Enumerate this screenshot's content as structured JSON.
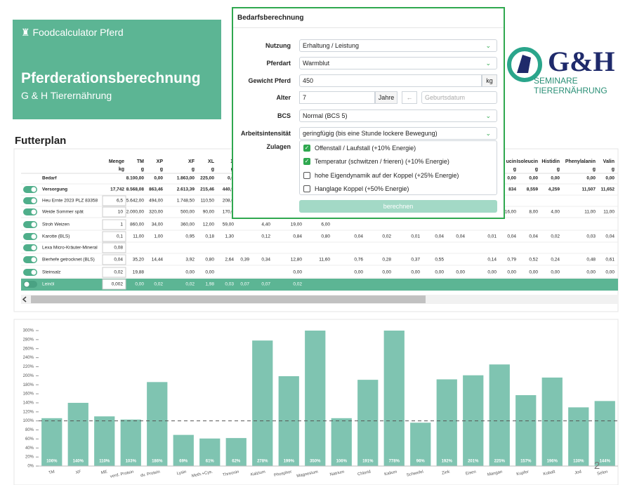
{
  "header": {
    "app": "Foodcalculator Pferd",
    "title": "Pferderationsberechnung",
    "subtitle": "G & H Tierernährung"
  },
  "logo": {
    "mark": "G&H",
    "tagline": "SEMINARE TIERERNÄHRUNG"
  },
  "page_number": "2",
  "form": {
    "title": "Bedarfsberechnung",
    "fields": [
      {
        "label": "Nutzung",
        "value": "Erhaltung / Leistung",
        "kind": "select"
      },
      {
        "label": "Pferdart",
        "value": "Warmblut",
        "kind": "select"
      },
      {
        "label": "Gewicht Pferd",
        "value": "450",
        "unit": "kg",
        "kind": "input"
      },
      {
        "label": "Alter",
        "value": "7",
        "unit": "Jahre",
        "placeholder": "Geburtsdatum",
        "kind": "age"
      },
      {
        "label": "BCS",
        "value": "Normal (BCS 5)",
        "kind": "select"
      },
      {
        "label": "Arbeitsintensität",
        "value": "geringfügig (bis eine Stunde lockere Bewegung)",
        "kind": "select"
      }
    ],
    "extras_label": "Zulagen",
    "extras": [
      {
        "label": "Offenstall / Laufstall (+10% Energie)",
        "checked": true
      },
      {
        "label": "Temperatur (schwitzen / frieren) (+10% Energie)",
        "checked": true
      },
      {
        "label": "hohe Eigendynamik auf der Koppel (+25% Energie)",
        "checked": false
      },
      {
        "label": "Hanglage Koppel (+50% Energie)",
        "checked": false
      }
    ],
    "button": "berechnen"
  },
  "table": {
    "title": "Futterplan",
    "columns": [
      {
        "name": "Menge",
        "unit": "kg"
      },
      {
        "name": "TM",
        "unit": "g"
      },
      {
        "name": "XP",
        "unit": "g"
      },
      {
        "name": "XF",
        "unit": "g"
      },
      {
        "name": "XL",
        "unit": "g"
      },
      {
        "name": "X",
        "unit": "g"
      },
      null,
      null,
      null,
      null,
      null,
      null,
      null,
      null,
      null,
      null,
      {
        "name": "ucin",
        "unit": "g"
      },
      {
        "name": "Isoleucin",
        "unit": "g"
      },
      {
        "name": "Histidin",
        "unit": "g"
      },
      {
        "name": "Phenylalanin",
        "unit": "g"
      },
      {
        "name": "Valin",
        "unit": "g"
      }
    ],
    "rows": [
      {
        "name": "Bedarf",
        "cells": [
          null,
          "8.100,00",
          "0,00",
          "1.863,00",
          "225,00",
          "0,0",
          null,
          null,
          null,
          null,
          null,
          null,
          null,
          null,
          null,
          null,
          "0,00",
          "0,00",
          "0,00",
          "0,00",
          "0,00"
        ]
      },
      {
        "name": "Versorgung",
        "cells": [
          "17,742",
          "8.568,08",
          "863,46",
          "2.613,39",
          "215,46",
          "440,9",
          null,
          null,
          null,
          null,
          null,
          null,
          null,
          null,
          null,
          null,
          "834",
          "8,559",
          "4,259",
          "11,507",
          "11,652"
        ]
      },
      {
        "name": "Heu Ernte 2023 PLZ 83358",
        "cells": [
          "6,5",
          "5.642,00",
          "494,00",
          "1.748,50",
          "110,50",
          "208,0",
          null,
          null,
          null,
          null,
          null,
          null,
          null,
          null,
          null,
          null,
          null,
          null,
          null,
          null,
          null
        ]
      },
      {
        "name": "Weide Sommer spät",
        "cells": [
          "10",
          "2.000,00",
          "320,00",
          "500,00",
          "90,00",
          "170,0",
          null,
          null,
          null,
          null,
          null,
          null,
          null,
          null,
          null,
          null,
          "16,00",
          "8,00",
          "4,00",
          "11,00",
          "11,00"
        ]
      },
      {
        "name": "Stroh Weizen",
        "cells": [
          "1",
          "860,00",
          "34,00",
          "360,00",
          "12,00",
          "59,00",
          null,
          "4,40",
          "19,00",
          "6,00",
          null,
          null,
          null,
          null,
          null,
          null,
          null,
          null,
          null,
          null,
          null
        ]
      },
      {
        "name": "Karotte (BLS)",
        "cells": [
          "0,1",
          "11,00",
          "1,00",
          "0,95",
          "0,18",
          "1,30",
          null,
          "0,12",
          "0,84",
          "0,80",
          "0,04",
          "0,02",
          "0,01",
          "0,04",
          "0,04",
          "0,01",
          "0,04",
          "0,04",
          "0,02",
          "0,03",
          "0,04"
        ]
      },
      {
        "name": "Lexa Micro-Kräuter-Mineral",
        "cells": [
          "0,08",
          null,
          null,
          null,
          null,
          null,
          null,
          null,
          null,
          null,
          null,
          null,
          null,
          null,
          null,
          null,
          null,
          null,
          null,
          null,
          null
        ]
      },
      {
        "name": "Bierhefe getrocknet (BLS)",
        "cells": [
          "0,04",
          "35,20",
          "14,44",
          "3,92",
          "0,80",
          "2,64",
          "0,39",
          "0,34",
          "12,80",
          "11,60",
          "0,76",
          "0,28",
          "0,37",
          "0,55",
          null,
          "0,14",
          "0,79",
          "0,52",
          "0,24",
          "0,48",
          "0,61"
        ]
      },
      {
        "name": "Steinsalz",
        "cells": [
          "0,02",
          "19,88",
          null,
          "0,00",
          "0,00",
          null,
          null,
          null,
          "0,00",
          null,
          "0,00",
          "0,00",
          "0,00",
          "0,00",
          "0,00",
          "0,00",
          "0,00",
          "0,00",
          "0,00",
          "0,00",
          "0,00"
        ]
      },
      {
        "name": "Leinöl",
        "cells": [
          "0,002",
          "0,00",
          "0,02",
          "0,02",
          "1,98",
          "0,03",
          "0,07",
          "0,07",
          "0,02",
          null,
          null,
          null,
          null,
          null,
          null,
          null,
          null,
          null,
          null,
          null,
          null
        ]
      }
    ]
  },
  "chart_data": {
    "type": "bar",
    "color": "#7fc4b1",
    "categories": [
      "TM",
      "XF",
      "ME",
      "verd. Protein",
      "dv. Protein",
      "Lysin",
      "Meth.+Cys.",
      "Threonin",
      "Kalzium",
      "Phosphor",
      "Magnesium",
      "Natrium",
      "Chlorid",
      "Kalium",
      "Schwefel",
      "Zink",
      "Eisen",
      "Mangan",
      "Kupfer",
      "Kobalt",
      "Jod",
      "Selen"
    ],
    "values": [
      106,
      140,
      110,
      103,
      186,
      69,
      61,
      62,
      278,
      199,
      350,
      106,
      191,
      778,
      96,
      192,
      201,
      225,
      157,
      196,
      130,
      144
    ],
    "value_labels": [
      "106%",
      "140%",
      "110%",
      "103%",
      "186%",
      "69%",
      "61%",
      "62%",
      "278%",
      "199%",
      "350%",
      "106%",
      "191%",
      "778%",
      "96%",
      "192%",
      "201%",
      "225%",
      "157%",
      "196%",
      "130%",
      "144%"
    ],
    "ylim": [
      0,
      300
    ],
    "yticks": [
      {
        "value": 0,
        "label": "0%"
      },
      {
        "value": 20,
        "label": "20%"
      },
      {
        "value": 40,
        "label": "40%"
      },
      {
        "value": 60,
        "label": "60%"
      },
      {
        "value": 80,
        "label": "80%"
      },
      {
        "value": 100,
        "label": "100%"
      },
      {
        "value": 120,
        "label": "120%"
      },
      {
        "value": 140,
        "label": "140%"
      },
      {
        "value": 160,
        "label": "160%"
      },
      {
        "value": 180,
        "label": "180%"
      },
      {
        "value": 200,
        "label": "200%"
      },
      {
        "value": 220,
        "label": "220%"
      },
      {
        "value": 240,
        "label": "240%"
      },
      {
        "value": 260,
        "label": "260%"
      },
      {
        "value": 280,
        "label": "280%"
      },
      {
        "value": 300,
        "label": "300%"
      }
    ],
    "reference_line": 100,
    "grid": false
  }
}
